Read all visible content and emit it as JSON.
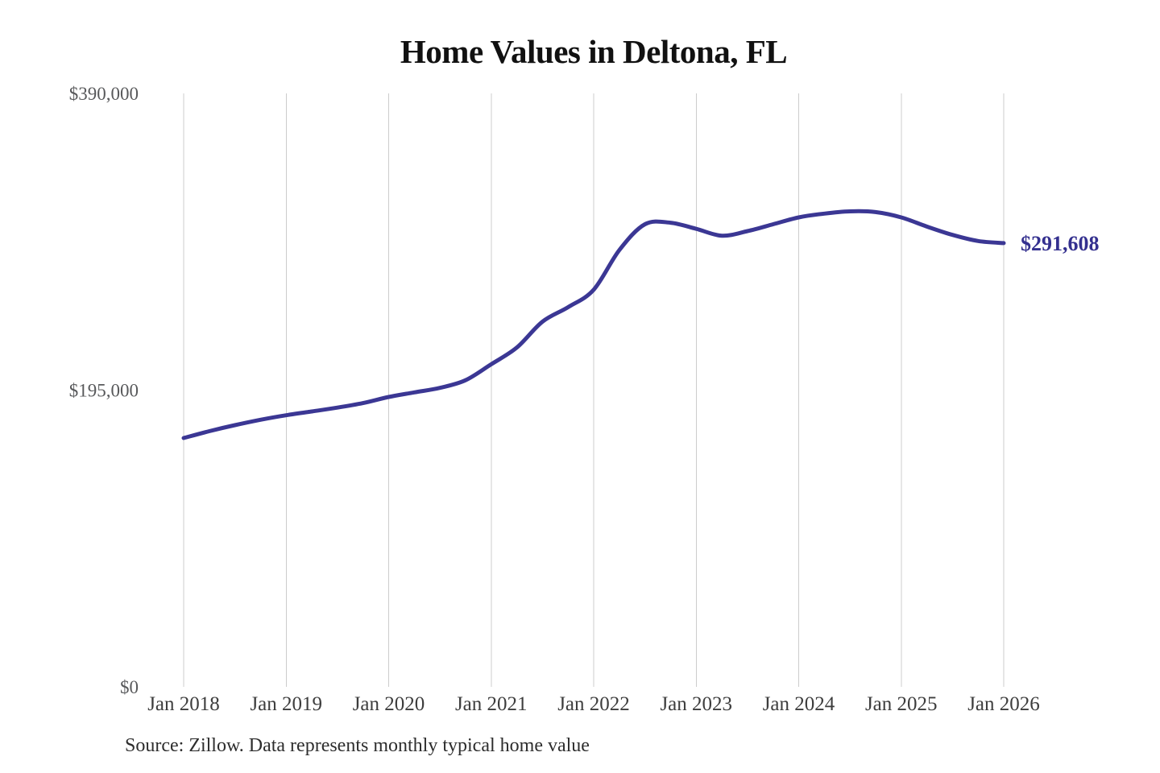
{
  "page": {
    "background_color": "#ffffff"
  },
  "chart_data": {
    "type": "line",
    "title": "Home Values in Deltona, FL",
    "source_note": "Source: Zillow. Data represents monthly typical home value",
    "legend": "none",
    "grid": "vertical-only",
    "line_color": "#3b3794",
    "gridline_color": "#cccccc",
    "title_color": "#111111",
    "x_tick_color": "#3d3d3d",
    "y_tick_color": "#58595b",
    "end_label_color": "#34308f",
    "source_color": "#2d2d2d",
    "ylim": [
      0,
      390000
    ],
    "y_ticks": [
      {
        "label": "$390,000",
        "value": 390000
      },
      {
        "label": "$195,000",
        "value": 195000
      },
      {
        "label": "$0",
        "value": 0
      }
    ],
    "x_ticks": [
      "Jan 2018",
      "Jan 2019",
      "Jan 2020",
      "Jan 2021",
      "Jan 2022",
      "Jan 2023",
      "Jan 2024",
      "Jan 2025",
      "Jan 2026"
    ],
    "series": [
      {
        "name": "Typical home value",
        "end_label": "$291,608",
        "end_value": 291608,
        "dates": [
          "2018-01",
          "2018-04",
          "2018-07",
          "2018-10",
          "2019-01",
          "2019-04",
          "2019-07",
          "2019-10",
          "2020-01",
          "2020-04",
          "2020-07",
          "2020-10",
          "2021-01",
          "2021-04",
          "2021-07",
          "2021-10",
          "2022-01",
          "2022-04",
          "2022-07",
          "2022-10",
          "2023-01",
          "2023-04",
          "2023-07",
          "2023-10",
          "2024-01",
          "2024-04",
          "2024-07",
          "2024-10",
          "2025-01",
          "2025-04",
          "2025-07",
          "2025-10",
          "2026-01"
        ],
        "values": [
          163500,
          168000,
          172000,
          175500,
          178500,
          181000,
          183500,
          186500,
          190500,
          193500,
          196500,
          201500,
          212000,
          223000,
          240000,
          249500,
          261000,
          287000,
          304000,
          305000,
          301000,
          296500,
          299500,
          304000,
          308500,
          311000,
          312500,
          312000,
          308500,
          302500,
          297000,
          293000,
          291608
        ]
      }
    ]
  }
}
